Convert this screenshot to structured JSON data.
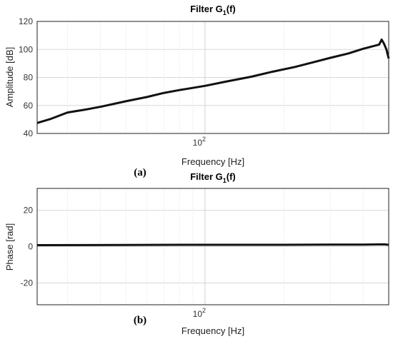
{
  "chart_data": [
    {
      "type": "line",
      "title": "Filter G",
      "title_subscript": "1",
      "title_suffix": "(f)",
      "xlabel": "Frequency [Hz]",
      "ylabel": "Amplitude [dB]",
      "panel_label": "(a)",
      "x_scale": "log",
      "xlim": [
        23,
        500
      ],
      "ylim": [
        40,
        120
      ],
      "y_ticks": [
        40,
        60,
        80,
        100,
        120
      ],
      "x_ticks": [
        {
          "value": 100,
          "base": "10",
          "exp": "2"
        }
      ],
      "grid": true,
      "series": [
        {
          "x": [
            23,
            26,
            30,
            35,
            40,
            50,
            60,
            70,
            80,
            100,
            120,
            150,
            180,
            220,
            260,
            300,
            350,
            400,
            440,
            460,
            470,
            480,
            490,
            500
          ],
          "y": [
            47.5,
            50.5,
            55,
            57,
            59,
            63,
            66,
            69,
            71,
            74,
            77,
            80.5,
            84,
            87.5,
            91,
            94,
            97,
            100.5,
            102.5,
            103.5,
            107,
            104,
            100,
            93.5
          ]
        }
      ]
    },
    {
      "type": "line",
      "title": "Filter G",
      "title_subscript": "1",
      "title_suffix": "(f)",
      "xlabel": "Frequency [Hz]",
      "ylabel": "Phase [rad]",
      "panel_label": "(b)",
      "x_scale": "log",
      "xlim": [
        23,
        500
      ],
      "ylim": [
        -32,
        32
      ],
      "y_ticks": [
        -20,
        0,
        20
      ],
      "x_ticks": [
        {
          "value": 100,
          "base": "10",
          "exp": "2"
        }
      ],
      "grid": true,
      "series": [
        {
          "x": [
            23,
            50,
            100,
            200,
            300,
            400,
            480,
            500
          ],
          "y": [
            0.8,
            0.9,
            1.0,
            1.0,
            1.1,
            1.1,
            1.2,
            1.0
          ]
        }
      ]
    }
  ]
}
